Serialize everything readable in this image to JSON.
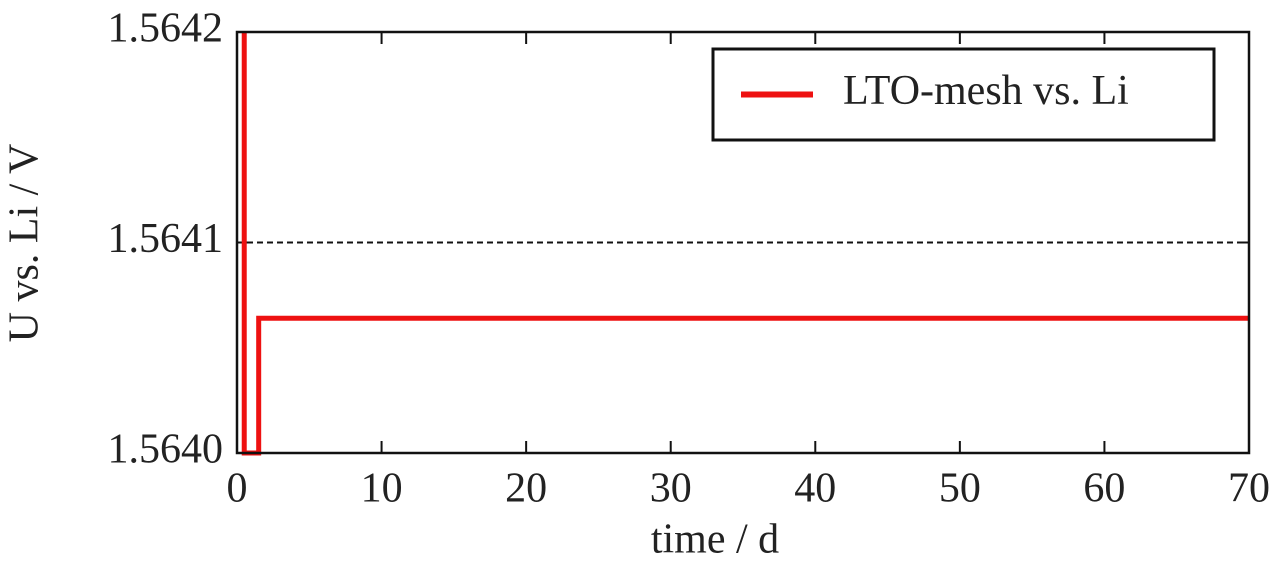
{
  "chart_data": {
    "type": "line",
    "xlabel": "time / d",
    "ylabel": "U vs. Li / V",
    "x": [
      0.5,
      0.5,
      1.5,
      1.5,
      70
    ],
    "series": [
      {
        "name": "LTO-mesh vs. Li",
        "color": "#ee1111",
        "values": [
          1.5642,
          1.564,
          1.564,
          1.564064,
          1.564064
        ]
      }
    ],
    "xlim": [
      0,
      70
    ],
    "xticks": [
      0,
      10,
      20,
      30,
      40,
      50,
      60,
      70
    ],
    "ylim": [
      1.564,
      1.5642
    ],
    "yticks": [
      {
        "value": 1.564,
        "label": "1.5640"
      },
      1.5641,
      1.5642
    ],
    "grid": "y",
    "legend": "upper right"
  }
}
